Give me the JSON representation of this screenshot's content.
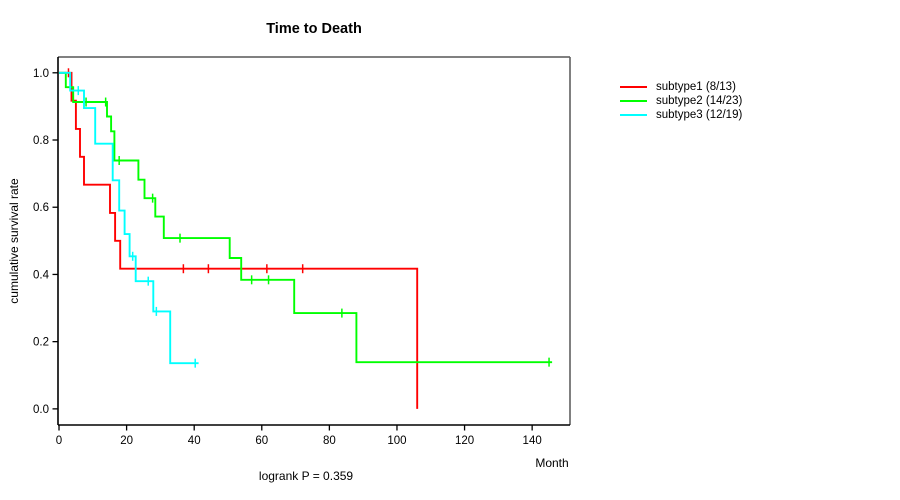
{
  "title": "Time to Death",
  "chart_data": {
    "type": "line",
    "variant": "kaplan-meier-step",
    "title": "Time to Death",
    "xlabel": "Month",
    "ylabel": "cumulative survival rate",
    "annotation": "logrank P = 0.359",
    "grid": false,
    "legend_position": "right-outside",
    "xlim": [
      -0.3,
      151.2
    ],
    "ylim": [
      -0.048,
      1.047
    ],
    "xticks": [
      0,
      20,
      40,
      60,
      80,
      100,
      120,
      140
    ],
    "yticks": [
      0.0,
      0.2,
      0.4,
      0.6,
      0.8,
      1.0
    ],
    "axis_color": "#000000",
    "box_top_color": "#808080",
    "box_right_color": "#606060",
    "series": [
      {
        "name": "subtype1 (8/13)",
        "color": "#FF0000",
        "steps": [
          [
            0,
            1.0
          ],
          [
            3.7,
            0.917
          ],
          [
            5.0,
            0.833
          ],
          [
            6.2,
            0.75
          ],
          [
            7.4,
            0.667
          ],
          [
            15.1,
            0.583
          ],
          [
            16.6,
            0.5
          ],
          [
            18.1,
            0.417
          ],
          [
            106,
            0.0
          ]
        ],
        "censors": [
          [
            2.8,
            1.0
          ],
          [
            36.8,
            0.417
          ],
          [
            44.2,
            0.417
          ],
          [
            61.5,
            0.417
          ],
          [
            72.1,
            0.417
          ]
        ]
      },
      {
        "name": "subtype2 (14/23)",
        "color": "#00FF00",
        "steps": [
          [
            0,
            1.0
          ],
          [
            2.0,
            0.957
          ],
          [
            4.2,
            0.913
          ],
          [
            14.2,
            0.87
          ],
          [
            15.4,
            0.826
          ],
          [
            16.4,
            0.739
          ],
          [
            23.5,
            0.682
          ],
          [
            25.3,
            0.627
          ],
          [
            28.5,
            0.572
          ],
          [
            31.0,
            0.508
          ],
          [
            50.5,
            0.449
          ],
          [
            53.9,
            0.384
          ],
          [
            69.6,
            0.285
          ],
          [
            88.0,
            0.139
          ],
          [
            145.9,
            0.139
          ]
        ],
        "censors": [
          [
            8.0,
            0.913
          ],
          [
            13.8,
            0.913
          ],
          [
            17.8,
            0.739
          ],
          [
            27.7,
            0.627
          ],
          [
            35.8,
            0.508
          ],
          [
            57.0,
            0.384
          ],
          [
            62.0,
            0.384
          ],
          [
            83.7,
            0.285
          ],
          [
            145.0,
            0.139
          ]
        ]
      },
      {
        "name": "subtype3 (12/19)",
        "color": "#00FFFF",
        "steps": [
          [
            0,
            1.0
          ],
          [
            3.3,
            0.947
          ],
          [
            7.4,
            0.895
          ],
          [
            10.7,
            0.789
          ],
          [
            15.9,
            0.68
          ],
          [
            17.8,
            0.59
          ],
          [
            19.4,
            0.52
          ],
          [
            20.9,
            0.454
          ],
          [
            22.7,
            0.38
          ],
          [
            27.9,
            0.29
          ],
          [
            32.9,
            0.136
          ],
          [
            41.3,
            0.136
          ]
        ],
        "censors": [
          [
            5.7,
            0.947
          ],
          [
            21.8,
            0.454
          ],
          [
            26.4,
            0.38
          ],
          [
            28.8,
            0.29
          ],
          [
            40.3,
            0.136
          ]
        ]
      }
    ]
  },
  "legend": {
    "items": [
      {
        "label": "subtype1 (8/13)",
        "color": "#FF0000"
      },
      {
        "label": "subtype2 (14/23)",
        "color": "#00FF00"
      },
      {
        "label": "subtype3 (12/19)",
        "color": "#00FFFF"
      }
    ]
  }
}
